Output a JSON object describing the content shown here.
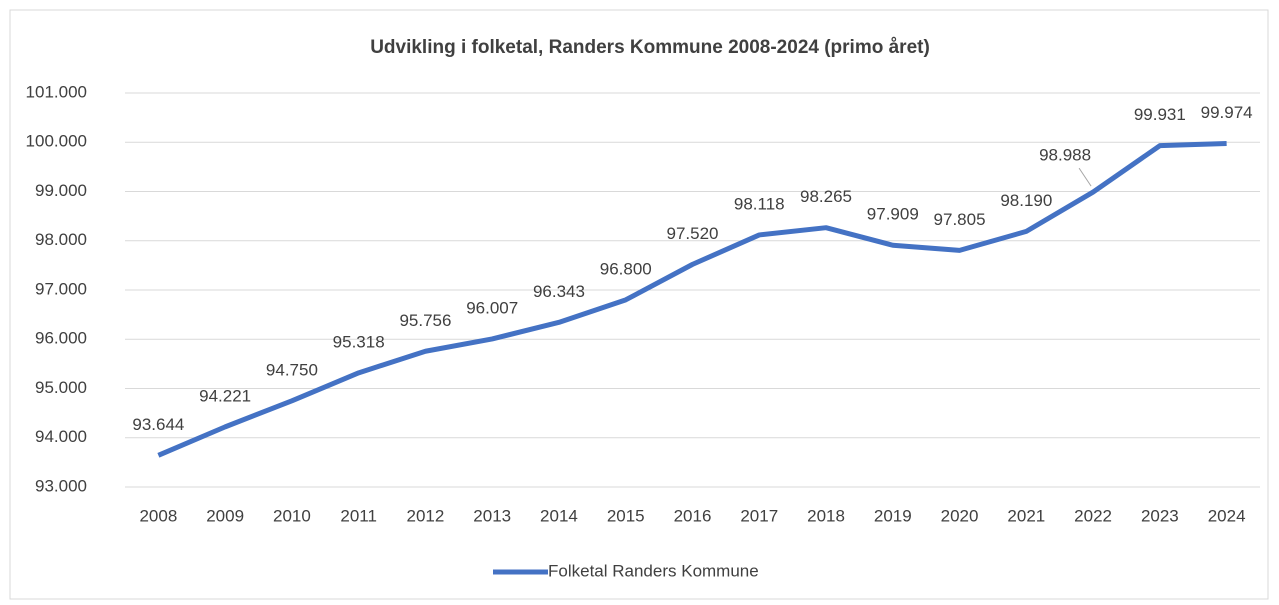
{
  "chart_data": {
    "type": "line",
    "title": "Udvikling i folketal, Randers Kommune 2008-2024 (primo året)",
    "categories": [
      "2008",
      "2009",
      "2010",
      "2011",
      "2012",
      "2013",
      "2014",
      "2015",
      "2016",
      "2017",
      "2018",
      "2019",
      "2020",
      "2021",
      "2022",
      "2023",
      "2024"
    ],
    "series": [
      {
        "name": "Folketal Randers Kommune",
        "color": "#4472c4",
        "values": [
          93644,
          94221,
          94750,
          95318,
          95756,
          96007,
          96343,
          96800,
          97520,
          98118,
          98265,
          97909,
          97805,
          98190,
          98988,
          99931,
          99974
        ],
        "value_labels": [
          "93.644",
          "94.221",
          "94.750",
          "95.318",
          "95.756",
          "96.007",
          "96.343",
          "96.800",
          "97.520",
          "98.118",
          "98.265",
          "97.909",
          "97.805",
          "98.190",
          "98.988",
          "99.931",
          "99.974"
        ]
      }
    ],
    "ylim": [
      93000,
      101000
    ],
    "yticks": [
      {
        "value": 93000,
        "label": "93.000"
      },
      {
        "value": 94000,
        "label": "94.000"
      },
      {
        "value": 95000,
        "label": "95.000"
      },
      {
        "value": 96000,
        "label": "96.000"
      },
      {
        "value": 97000,
        "label": "97.000"
      },
      {
        "value": 98000,
        "label": "98.000"
      },
      {
        "value": 99000,
        "label": "99.000"
      },
      {
        "value": 100000,
        "label": "100.000"
      },
      {
        "value": 101000,
        "label": "101.000"
      }
    ],
    "grid": true,
    "legend": "bottom"
  }
}
